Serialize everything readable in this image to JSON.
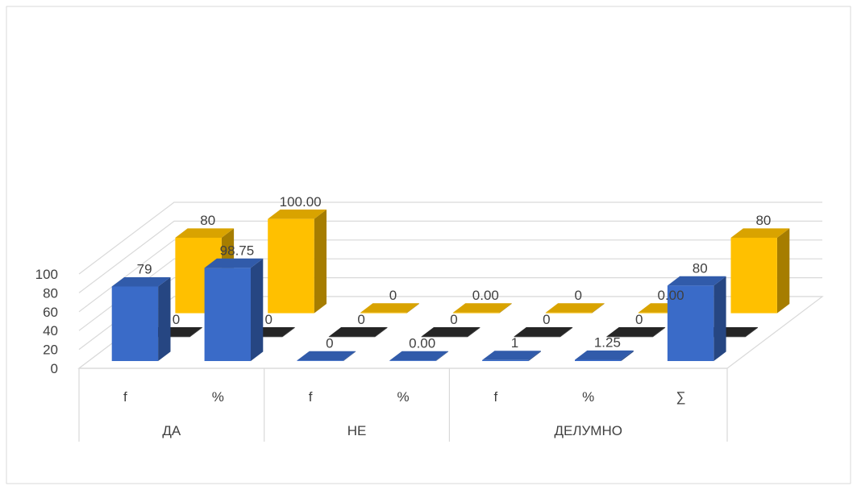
{
  "chart_data": {
    "type": "bar",
    "title": "",
    "xlabel": "",
    "ylabel": "",
    "ylim": [
      0,
      100
    ],
    "y_ticks": [
      "0",
      "20",
      "40",
      "60",
      "80",
      "100"
    ],
    "grid": true,
    "groups": [
      {
        "label": "ДА",
        "subcategories": [
          "f",
          "%"
        ]
      },
      {
        "label": "НЕ",
        "subcategories": [
          "f",
          "%"
        ]
      },
      {
        "label": "ДЕЛУМНО",
        "subcategories": [
          "f",
          "%",
          "∑"
        ]
      }
    ],
    "categories": [
      "f",
      "%",
      "f",
      "%",
      "f",
      "%",
      "∑"
    ],
    "series": [
      {
        "values": [
          79,
          98.75,
          0,
          0,
          1,
          1.25,
          80
        ],
        "labels": [
          "79",
          "98.75",
          "0",
          "0.00",
          "1",
          "1.25",
          "80"
        ],
        "color": "#3a6bc8"
      },
      {
        "values": [
          0,
          0,
          0,
          0,
          0,
          0,
          0
        ],
        "labels": [
          "0",
          "0",
          "0",
          "0",
          "0",
          "0",
          ""
        ],
        "color": "#2b2b2b"
      },
      {
        "values": [
          80,
          100,
          0,
          0,
          0,
          0,
          80
        ],
        "labels": [
          "80",
          "100.00",
          "0",
          "0.00",
          "0",
          "0.00",
          "80"
        ],
        "color": "#ffc000"
      }
    ]
  }
}
